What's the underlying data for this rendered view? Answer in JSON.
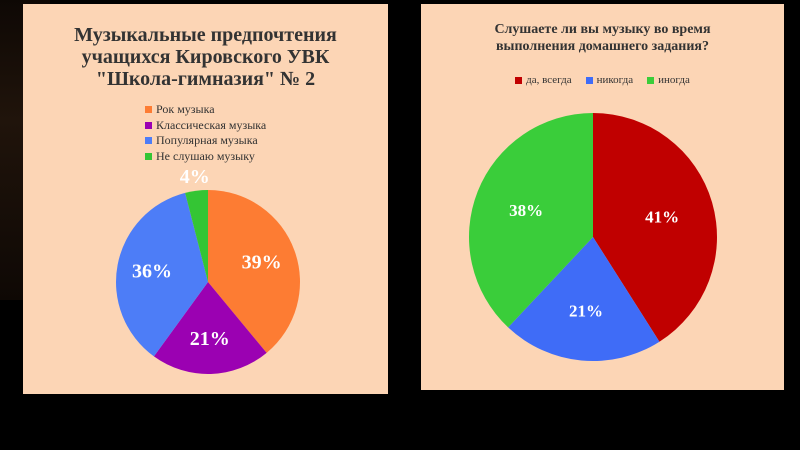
{
  "chart_data": [
    {
      "type": "pie",
      "title_lines": [
        "Музыкальные предпочтения",
        "учащихся Кировского УВК",
        "\"Школа-гимназия\" № 2"
      ],
      "labels": [
        "Рок музыка",
        "Классическая музыка",
        "Популярная музыка",
        "Не слушаю музыку"
      ],
      "values": [
        39,
        21,
        36,
        4
      ],
      "value_labels": [
        "39%",
        "21%",
        "36%",
        "4%"
      ],
      "colors": [
        "#fd7c33",
        "#9b01b2",
        "#4d7df7",
        "#34c534"
      ],
      "legend": "top-left"
    },
    {
      "type": "pie",
      "title_lines": [
        "Слушаете ли вы музыку во время",
        "выполнения домашнего задания?"
      ],
      "labels": [
        "да, всегда",
        "никогда",
        "иногда"
      ],
      "values": [
        41,
        21,
        38
      ],
      "value_labels": [
        "41%",
        "21%",
        "38%"
      ],
      "colors": [
        "#c00000",
        "#3f6cf7",
        "#3acd3a"
      ],
      "legend": "top"
    }
  ]
}
